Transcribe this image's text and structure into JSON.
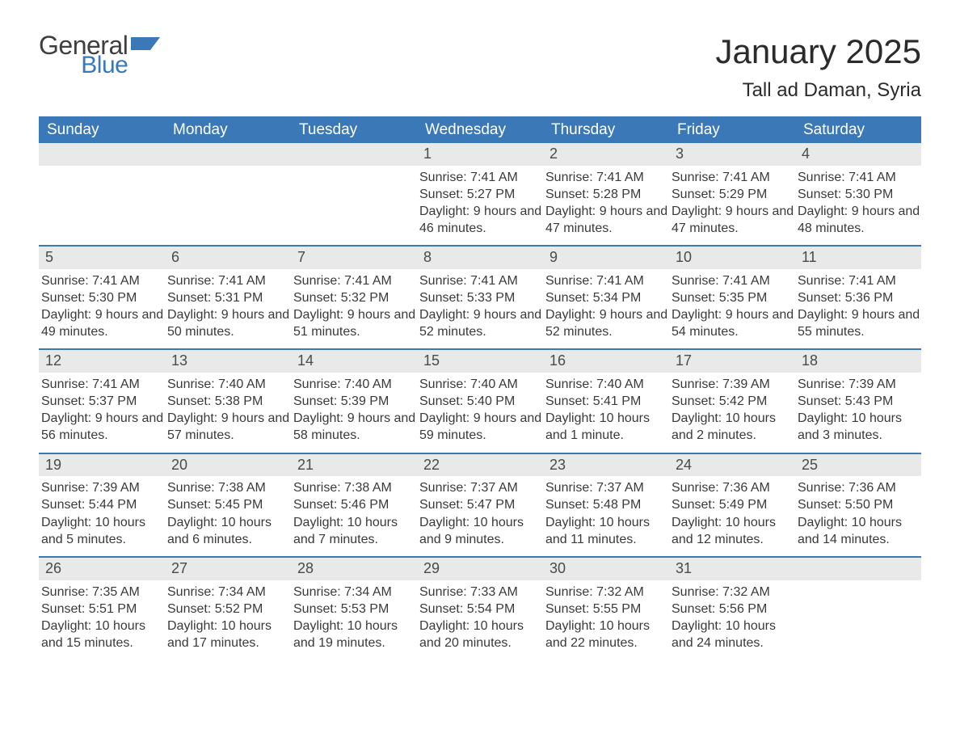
{
  "logo": {
    "word1": "General",
    "word2": "Blue",
    "color_general": "#3f3f3f",
    "color_blue": "#3a78b8",
    "flag_color": "#3a78b8"
  },
  "header": {
    "month_title": "January 2025",
    "location": "Tall ad Daman, Syria",
    "title_color": "#2b2b2b"
  },
  "calendar": {
    "header_bg": "#3a78b8",
    "header_text_color": "#ffffff",
    "daynum_bg": "#e9e9e9",
    "row_border_color": "#3a78b8",
    "text_color": "#3a3a3a",
    "days_of_week": [
      "Sunday",
      "Monday",
      "Tuesday",
      "Wednesday",
      "Thursday",
      "Friday",
      "Saturday"
    ],
    "weeks": [
      [
        null,
        null,
        null,
        {
          "n": "1",
          "sunrise": "7:41 AM",
          "sunset": "5:27 PM",
          "daylight": "9 hours and 46 minutes."
        },
        {
          "n": "2",
          "sunrise": "7:41 AM",
          "sunset": "5:28 PM",
          "daylight": "9 hours and 47 minutes."
        },
        {
          "n": "3",
          "sunrise": "7:41 AM",
          "sunset": "5:29 PM",
          "daylight": "9 hours and 47 minutes."
        },
        {
          "n": "4",
          "sunrise": "7:41 AM",
          "sunset": "5:30 PM",
          "daylight": "9 hours and 48 minutes."
        }
      ],
      [
        {
          "n": "5",
          "sunrise": "7:41 AM",
          "sunset": "5:30 PM",
          "daylight": "9 hours and 49 minutes."
        },
        {
          "n": "6",
          "sunrise": "7:41 AM",
          "sunset": "5:31 PM",
          "daylight": "9 hours and 50 minutes."
        },
        {
          "n": "7",
          "sunrise": "7:41 AM",
          "sunset": "5:32 PM",
          "daylight": "9 hours and 51 minutes."
        },
        {
          "n": "8",
          "sunrise": "7:41 AM",
          "sunset": "5:33 PM",
          "daylight": "9 hours and 52 minutes."
        },
        {
          "n": "9",
          "sunrise": "7:41 AM",
          "sunset": "5:34 PM",
          "daylight": "9 hours and 52 minutes."
        },
        {
          "n": "10",
          "sunrise": "7:41 AM",
          "sunset": "5:35 PM",
          "daylight": "9 hours and 54 minutes."
        },
        {
          "n": "11",
          "sunrise": "7:41 AM",
          "sunset": "5:36 PM",
          "daylight": "9 hours and 55 minutes."
        }
      ],
      [
        {
          "n": "12",
          "sunrise": "7:41 AM",
          "sunset": "5:37 PM",
          "daylight": "9 hours and 56 minutes."
        },
        {
          "n": "13",
          "sunrise": "7:40 AM",
          "sunset": "5:38 PM",
          "daylight": "9 hours and 57 minutes."
        },
        {
          "n": "14",
          "sunrise": "7:40 AM",
          "sunset": "5:39 PM",
          "daylight": "9 hours and 58 minutes."
        },
        {
          "n": "15",
          "sunrise": "7:40 AM",
          "sunset": "5:40 PM",
          "daylight": "9 hours and 59 minutes."
        },
        {
          "n": "16",
          "sunrise": "7:40 AM",
          "sunset": "5:41 PM",
          "daylight": "10 hours and 1 minute."
        },
        {
          "n": "17",
          "sunrise": "7:39 AM",
          "sunset": "5:42 PM",
          "daylight": "10 hours and 2 minutes."
        },
        {
          "n": "18",
          "sunrise": "7:39 AM",
          "sunset": "5:43 PM",
          "daylight": "10 hours and 3 minutes."
        }
      ],
      [
        {
          "n": "19",
          "sunrise": "7:39 AM",
          "sunset": "5:44 PM",
          "daylight": "10 hours and 5 minutes."
        },
        {
          "n": "20",
          "sunrise": "7:38 AM",
          "sunset": "5:45 PM",
          "daylight": "10 hours and 6 minutes."
        },
        {
          "n": "21",
          "sunrise": "7:38 AM",
          "sunset": "5:46 PM",
          "daylight": "10 hours and 7 minutes."
        },
        {
          "n": "22",
          "sunrise": "7:37 AM",
          "sunset": "5:47 PM",
          "daylight": "10 hours and 9 minutes."
        },
        {
          "n": "23",
          "sunrise": "7:37 AM",
          "sunset": "5:48 PM",
          "daylight": "10 hours and 11 minutes."
        },
        {
          "n": "24",
          "sunrise": "7:36 AM",
          "sunset": "5:49 PM",
          "daylight": "10 hours and 12 minutes."
        },
        {
          "n": "25",
          "sunrise": "7:36 AM",
          "sunset": "5:50 PM",
          "daylight": "10 hours and 14 minutes."
        }
      ],
      [
        {
          "n": "26",
          "sunrise": "7:35 AM",
          "sunset": "5:51 PM",
          "daylight": "10 hours and 15 minutes."
        },
        {
          "n": "27",
          "sunrise": "7:34 AM",
          "sunset": "5:52 PM",
          "daylight": "10 hours and 17 minutes."
        },
        {
          "n": "28",
          "sunrise": "7:34 AM",
          "sunset": "5:53 PM",
          "daylight": "10 hours and 19 minutes."
        },
        {
          "n": "29",
          "sunrise": "7:33 AM",
          "sunset": "5:54 PM",
          "daylight": "10 hours and 20 minutes."
        },
        {
          "n": "30",
          "sunrise": "7:32 AM",
          "sunset": "5:55 PM",
          "daylight": "10 hours and 22 minutes."
        },
        {
          "n": "31",
          "sunrise": "7:32 AM",
          "sunset": "5:56 PM",
          "daylight": "10 hours and 24 minutes."
        },
        null
      ]
    ],
    "labels": {
      "sunrise_prefix": "Sunrise: ",
      "sunset_prefix": "Sunset: ",
      "daylight_prefix": "Daylight: "
    }
  }
}
